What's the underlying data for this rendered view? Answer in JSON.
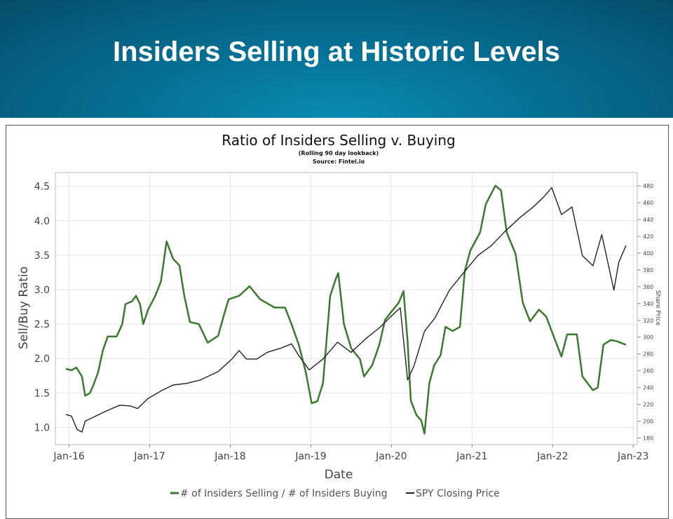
{
  "slide": {
    "title": "Insiders Selling at Historic Levels"
  },
  "chart_data": {
    "type": "line",
    "title": "Ratio of Insiders Selling v. Buying",
    "subtitle": "(Rolling 90 day lookback)",
    "source": "Source: Fintel.io",
    "xlabel": "Date",
    "ylabel": "Sell/Buy Ratio",
    "y2label": "Share Price",
    "xlim": [
      2015.83,
      2023.05
    ],
    "ylim": [
      0.75,
      4.7
    ],
    "y2lim": [
      172,
      496
    ],
    "grid": true,
    "legend_position": "bottom",
    "x_ticks": [
      {
        "v": 2016,
        "label": "Jan-16"
      },
      {
        "v": 2017,
        "label": "Jan-17"
      },
      {
        "v": 2018,
        "label": "Jan-18"
      },
      {
        "v": 2019,
        "label": "Jan-19"
      },
      {
        "v": 2020,
        "label": "Jan-20"
      },
      {
        "v": 2021,
        "label": "Jan-21"
      },
      {
        "v": 2022,
        "label": "Jan-22"
      },
      {
        "v": 2023,
        "label": "Jan-23"
      }
    ],
    "y_ticks": [
      {
        "v": 1.0,
        "label": "1.0"
      },
      {
        "v": 1.5,
        "label": "1.5"
      },
      {
        "v": 2.0,
        "label": "2.0"
      },
      {
        "v": 2.5,
        "label": "2.5"
      },
      {
        "v": 3.0,
        "label": "3.0"
      },
      {
        "v": 3.5,
        "label": "3.5"
      },
      {
        "v": 4.0,
        "label": "4.0"
      },
      {
        "v": 4.5,
        "label": "4.5"
      }
    ],
    "y2_ticks": [
      {
        "v": 180,
        "label": "180"
      },
      {
        "v": 200,
        "label": "200"
      },
      {
        "v": 220,
        "label": "220"
      },
      {
        "v": 240,
        "label": "240"
      },
      {
        "v": 260,
        "label": "260"
      },
      {
        "v": 280,
        "label": "280"
      },
      {
        "v": 300,
        "label": "300"
      },
      {
        "v": 320,
        "label": "320"
      },
      {
        "v": 340,
        "label": "340"
      },
      {
        "v": 360,
        "label": "360"
      },
      {
        "v": 380,
        "label": "380"
      },
      {
        "v": 400,
        "label": "400"
      },
      {
        "v": 420,
        "label": "420"
      },
      {
        "v": 440,
        "label": "440"
      },
      {
        "v": 460,
        "label": "460"
      },
      {
        "v": 480,
        "label": "480"
      }
    ],
    "series": [
      {
        "name": "# of Insiders Selling / # of Insiders Buying",
        "axis": "left",
        "color": "#3a7a2e",
        "x": [
          2015.96,
          2016.03,
          2016.09,
          2016.16,
          2016.2,
          2016.26,
          2016.31,
          2016.36,
          2016.42,
          2016.48,
          2016.59,
          2016.66,
          2016.7,
          2016.78,
          2016.83,
          2016.88,
          2016.92,
          2016.98,
          2017.07,
          2017.14,
          2017.21,
          2017.29,
          2017.37,
          2017.43,
          2017.5,
          2017.61,
          2017.72,
          2017.85,
          2017.94,
          2017.98,
          2018.11,
          2018.24,
          2018.37,
          2018.55,
          2018.68,
          2018.76,
          2018.85,
          2018.94,
          2019.01,
          2019.08,
          2019.15,
          2019.24,
          2019.31,
          2019.34,
          2019.41,
          2019.5,
          2019.61,
          2019.66,
          2019.76,
          2019.85,
          2019.92,
          2020.02,
          2020.09,
          2020.15,
          2020.2,
          2020.24,
          2020.31,
          2020.37,
          2020.41,
          2020.47,
          2020.53,
          2020.61,
          2020.67,
          2020.76,
          2020.85,
          2020.91,
          2020.98,
          2021.1,
          2021.17,
          2021.29,
          2021.36,
          2021.43,
          2021.54,
          2021.63,
          2021.72,
          2021.83,
          2021.92,
          2022.02,
          2022.11,
          2022.18,
          2022.3,
          2022.37,
          2022.5,
          2022.56,
          2022.63,
          2022.72,
          2022.8,
          2022.91
        ],
        "y": [
          1.85,
          1.83,
          1.87,
          1.74,
          1.46,
          1.5,
          1.64,
          1.8,
          2.12,
          2.32,
          2.32,
          2.5,
          2.79,
          2.83,
          2.91,
          2.79,
          2.5,
          2.71,
          2.91,
          3.12,
          3.7,
          3.45,
          3.35,
          2.91,
          2.53,
          2.5,
          2.23,
          2.33,
          2.71,
          2.86,
          2.91,
          3.05,
          2.86,
          2.74,
          2.74,
          2.5,
          2.2,
          1.79,
          1.35,
          1.38,
          1.64,
          2.91,
          3.16,
          3.24,
          2.5,
          2.15,
          1.99,
          1.74,
          1.9,
          2.2,
          2.56,
          2.71,
          2.81,
          2.98,
          2.25,
          1.39,
          1.18,
          1.1,
          0.91,
          1.64,
          1.9,
          2.05,
          2.46,
          2.4,
          2.46,
          3.27,
          3.57,
          3.83,
          4.24,
          4.51,
          4.44,
          3.83,
          3.52,
          2.81,
          2.54,
          2.71,
          2.61,
          2.3,
          2.03,
          2.35,
          2.35,
          1.74,
          1.54,
          1.58,
          2.2,
          2.27,
          2.25,
          2.2
        ]
      },
      {
        "name": "SPY Closing Price",
        "axis": "right",
        "color": "#222222",
        "x": [
          2015.96,
          2016.03,
          2016.1,
          2016.16,
          2016.2,
          2016.33,
          2016.46,
          2016.63,
          2016.76,
          2016.85,
          2016.98,
          2017.16,
          2017.29,
          2017.46,
          2017.63,
          2017.85,
          2018.02,
          2018.11,
          2018.2,
          2018.33,
          2018.46,
          2018.63,
          2018.76,
          2018.85,
          2018.98,
          2019.15,
          2019.33,
          2019.5,
          2019.68,
          2019.85,
          2020.02,
          2020.11,
          2020.2,
          2020.28,
          2020.41,
          2020.54,
          2020.72,
          2020.89,
          2021.07,
          2021.24,
          2021.41,
          2021.59,
          2021.76,
          2021.89,
          2021.99,
          2022.11,
          2022.24,
          2022.37,
          2022.5,
          2022.61,
          2022.76,
          2022.82,
          2022.91
        ],
        "y": [
          208,
          206,
          190,
          187,
          200,
          206,
          212,
          219,
          218,
          215,
          227,
          237,
          243,
          245,
          249,
          259,
          274,
          284,
          274,
          274,
          282,
          287,
          292,
          278,
          261,
          274,
          294,
          282,
          298,
          311,
          327,
          335,
          249,
          266,
          307,
          323,
          356,
          376,
          397,
          409,
          426,
          442,
          455,
          467,
          478,
          446,
          455,
          397,
          385,
          422,
          356,
          389,
          409
        ]
      }
    ]
  }
}
